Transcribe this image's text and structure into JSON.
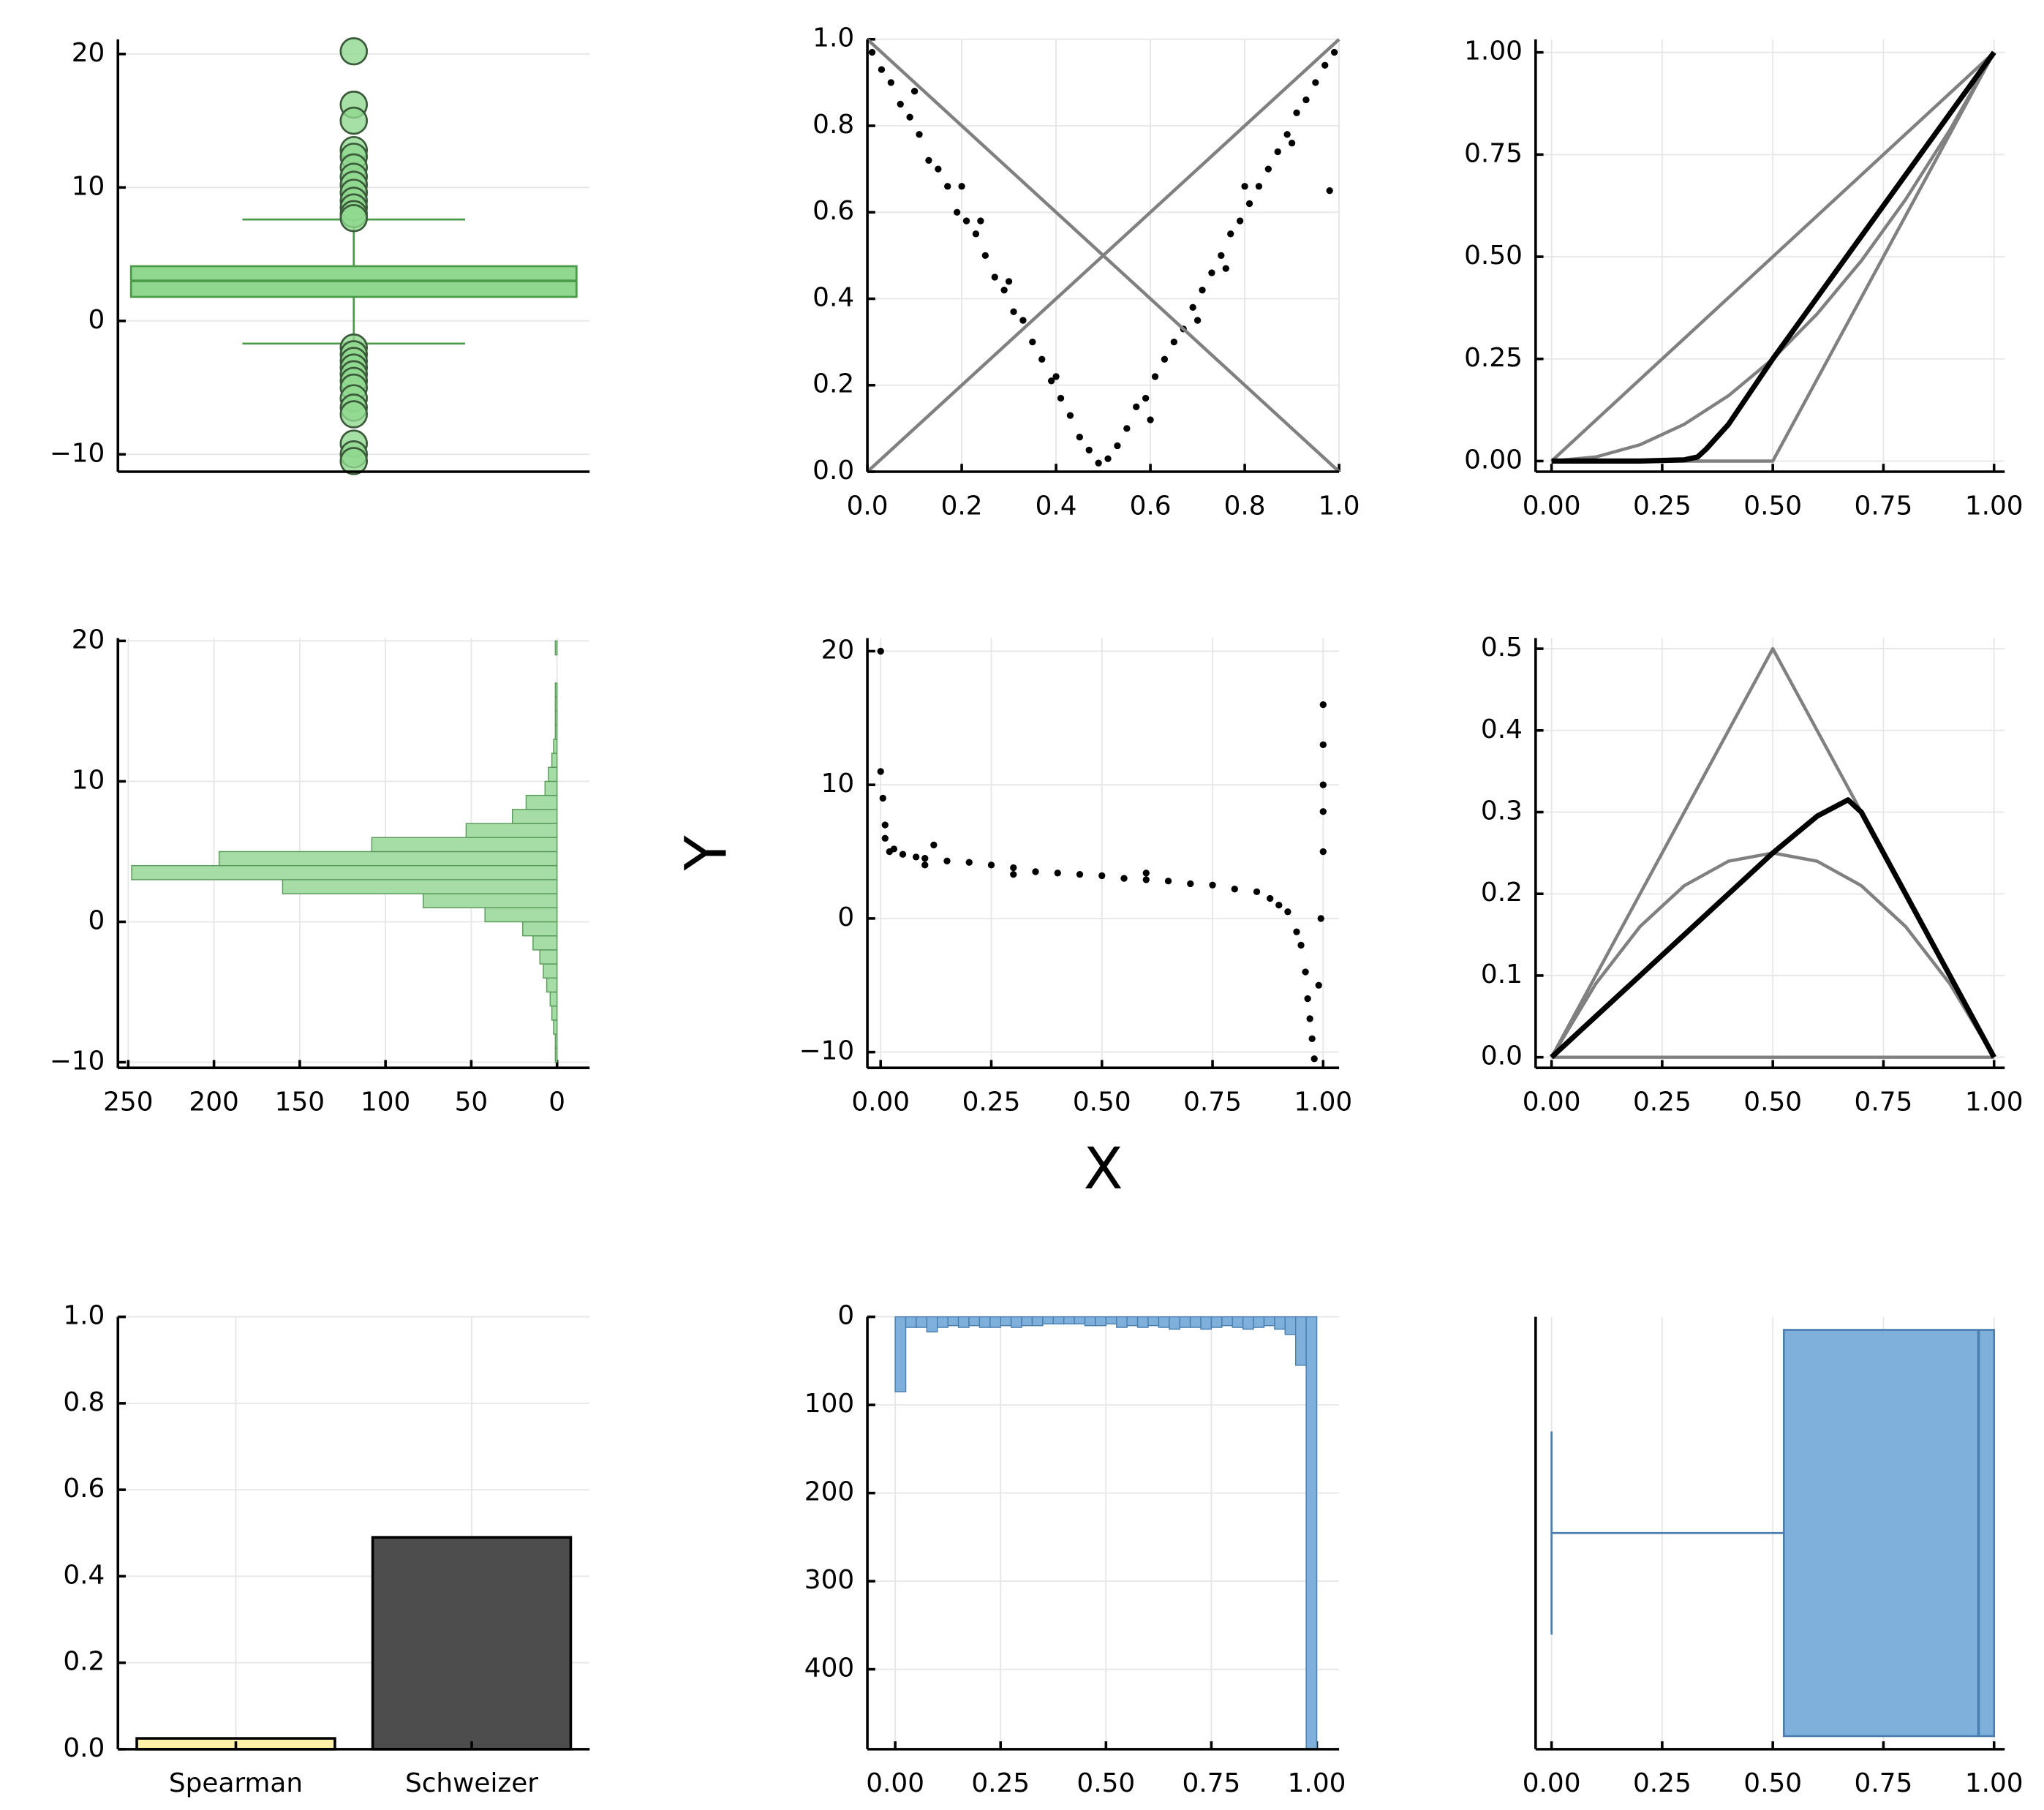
{
  "chart_data": [
    {
      "type": "box",
      "orientation": "vertical",
      "color": "#90d890",
      "edge": "#4a9a4a",
      "q1": 1.8,
      "median": 3.0,
      "q3": 4.1,
      "whisker_low": -1.7,
      "whisker_high": 7.6,
      "outliers": [
        20.2,
        16.2,
        15,
        12.8,
        12.3,
        11.5,
        10.8,
        10.2,
        9.6,
        9.0,
        8.5,
        8.0,
        7.7,
        -2,
        -2.5,
        -3,
        -3.5,
        -4,
        -4.5,
        -5,
        -5.8,
        -6.5,
        -7,
        -9.2,
        -10,
        -10.5
      ],
      "ylim": [
        -11.3,
        21.1
      ],
      "yticks": [
        {
          "value": -10,
          "label": "−10"
        },
        0,
        10,
        20
      ],
      "grid": true
    },
    {
      "type": "scatter",
      "xlim": [
        0,
        1
      ],
      "ylim": [
        0,
        1
      ],
      "xticks": [
        {
          "value": 0,
          "label": "0.0"
        },
        0.2,
        0.4,
        0.6,
        0.8,
        {
          "value": 1,
          "label": "1.0"
        }
      ],
      "yticks": [
        {
          "value": 0,
          "label": "0.0"
        },
        0.2,
        0.4,
        0.6,
        0.8,
        {
          "value": 1,
          "label": "1.0"
        }
      ],
      "grid": true,
      "series": [
        {
          "kind": "points",
          "color": "#000000",
          "x": [
            0.01,
            0.03,
            0.05,
            0.07,
            0.09,
            0.11,
            0.13,
            0.15,
            0.17,
            0.19,
            0.21,
            0.23,
            0.25,
            0.27,
            0.29,
            0.31,
            0.33,
            0.35,
            0.37,
            0.39,
            0.41,
            0.43,
            0.45,
            0.47,
            0.49,
            0.51,
            0.53,
            0.55,
            0.57,
            0.59,
            0.61,
            0.63,
            0.65,
            0.67,
            0.69,
            0.71,
            0.73,
            0.75,
            0.77,
            0.79,
            0.81,
            0.83,
            0.85,
            0.87,
            0.89,
            0.91,
            0.93,
            0.95,
            0.97,
            0.99,
            0.1,
            0.2,
            0.3,
            0.4,
            0.6,
            0.7,
            0.8,
            0.9,
            0.98,
            0.24,
            0.76
          ],
          "values": [
            0.97,
            0.93,
            0.9,
            0.85,
            0.82,
            0.78,
            0.72,
            0.7,
            0.66,
            0.6,
            0.58,
            0.55,
            0.5,
            0.45,
            0.42,
            0.37,
            0.35,
            0.3,
            0.26,
            0.21,
            0.17,
            0.13,
            0.08,
            0.05,
            0.02,
            0.03,
            0.06,
            0.1,
            0.15,
            0.17,
            0.22,
            0.26,
            0.3,
            0.33,
            0.38,
            0.42,
            0.46,
            0.5,
            0.55,
            0.58,
            0.62,
            0.66,
            0.7,
            0.74,
            0.78,
            0.83,
            0.86,
            0.9,
            0.94,
            0.97,
            0.88,
            0.66,
            0.44,
            0.22,
            0.12,
            0.35,
            0.66,
            0.76,
            0.65,
            0.58,
            0.47
          ]
        },
        {
          "kind": "line",
          "color": "#808080",
          "x": [
            0,
            1
          ],
          "values": [
            0,
            1
          ]
        },
        {
          "kind": "line",
          "color": "#808080",
          "x": [
            0,
            1
          ],
          "values": [
            1,
            0
          ]
        }
      ]
    },
    {
      "type": "line",
      "xlim": [
        -0.036,
        1.024
      ],
      "ylim": [
        -0.026,
        1.032
      ],
      "xticks": [
        {
          "value": 0,
          "label": "0.00"
        },
        0.25,
        {
          "value": 0.5,
          "label": "0.50"
        },
        0.75,
        {
          "value": 1,
          "label": "1.00"
        }
      ],
      "yticks": [
        {
          "value": 0,
          "label": "0.00"
        },
        0.25,
        {
          "value": 0.5,
          "label": "0.50"
        },
        0.75,
        {
          "value": 1,
          "label": "1.00"
        }
      ],
      "grid": true,
      "series": [
        {
          "kind": "line",
          "color": "#808080",
          "x": [
            0,
            1
          ],
          "values": [
            0,
            1
          ]
        },
        {
          "kind": "line",
          "color": "#808080",
          "x": [
            0,
            0.1,
            0.2,
            0.3,
            0.4,
            0.5,
            0.6,
            0.7,
            0.8,
            0.9,
            1
          ],
          "values": [
            0,
            0.01,
            0.04,
            0.09,
            0.16,
            0.25,
            0.36,
            0.49,
            0.64,
            0.81,
            1
          ]
        },
        {
          "kind": "line",
          "color": "#808080",
          "x": [
            0,
            0.5,
            1
          ],
          "values": [
            0,
            0,
            1
          ]
        },
        {
          "kind": "line",
          "color": "#000000",
          "x": [
            0,
            0.1,
            0.2,
            0.3,
            0.33,
            0.35,
            0.4,
            0.5,
            0.6,
            0.7,
            0.8,
            0.9,
            1
          ],
          "values": [
            0,
            0,
            0,
            0.003,
            0.01,
            0.03,
            0.09,
            0.25,
            0.4,
            0.55,
            0.7,
            0.85,
            1
          ]
        }
      ]
    },
    {
      "type": "histogram",
      "orientation": "horizontal",
      "color": "#a6dca6",
      "edge": "#5a9a5a",
      "bins": [
        -10,
        -9,
        -8,
        -7,
        -6,
        -5,
        -4,
        -3,
        -2,
        -1,
        0,
        1,
        2,
        3,
        4,
        5,
        6,
        7,
        8,
        9,
        10,
        11,
        12,
        13,
        14,
        15,
        16,
        17,
        18,
        19,
        20
      ],
      "values": [
        1,
        1,
        2,
        3,
        4,
        6,
        8,
        10,
        14,
        20,
        42,
        78,
        160,
        248,
        197,
        108,
        53,
        26,
        18,
        7,
        5,
        3,
        2,
        1,
        1,
        1,
        1,
        0,
        0,
        1
      ],
      "xlim": [
        256,
        -19
      ],
      "xticks": [
        250,
        200,
        150,
        100,
        50,
        0
      ],
      "ylim": [
        -10.4,
        20.2
      ],
      "yticks": [
        {
          "value": -10,
          "label": "−10"
        },
        0,
        10,
        20
      ],
      "grid": true
    },
    {
      "type": "scatter",
      "xlabel": "X",
      "ylabel": "Y",
      "xlim": [
        -0.03,
        1.036
      ],
      "ylim": [
        -11.18,
        20.98
      ],
      "xticks": [
        {
          "value": 0,
          "label": "0.00"
        },
        0.25,
        {
          "value": 0.5,
          "label": "0.50"
        },
        0.75,
        {
          "value": 1,
          "label": "1.00"
        }
      ],
      "yticks": [
        {
          "value": -10,
          "label": "−10"
        },
        0,
        10,
        20
      ],
      "grid": true,
      "series": [
        {
          "kind": "points",
          "color": "#000000",
          "x": [
            0,
            0,
            0.005,
            0.01,
            0.01,
            0.02,
            0.03,
            0.05,
            0.08,
            0.1,
            0.12,
            0.15,
            0.2,
            0.25,
            0.3,
            0.35,
            0.4,
            0.45,
            0.5,
            0.55,
            0.6,
            0.65,
            0.7,
            0.75,
            0.8,
            0.85,
            0.88,
            0.9,
            0.92,
            0.94,
            0.95,
            0.96,
            0.965,
            0.97,
            0.975,
            0.98,
            0.99,
            0.995,
            1,
            1,
            1,
            1,
            1,
            0.3,
            0.6,
            0.1
          ],
          "values": [
            20,
            11,
            9,
            7,
            6,
            5,
            5.2,
            4.8,
            4.6,
            4.5,
            5.5,
            4.3,
            4.2,
            4.0,
            3.8,
            3.5,
            3.4,
            3.3,
            3.2,
            3.0,
            2.9,
            2.8,
            2.6,
            2.5,
            2.2,
            2.0,
            1.5,
            1.0,
            0.5,
            -1,
            -2,
            -4,
            -6,
            -7.5,
            -9,
            -10.5,
            -5,
            0,
            5,
            8,
            10,
            13,
            16,
            3.3,
            3.4,
            4.0
          ]
        }
      ]
    },
    {
      "type": "line",
      "xlim": [
        -0.036,
        1.024
      ],
      "ylim": [
        -0.013,
        0.513
      ],
      "xticks": [
        {
          "value": 0,
          "label": "0.00"
        },
        0.25,
        {
          "value": 0.5,
          "label": "0.50"
        },
        0.75,
        {
          "value": 1,
          "label": "1.00"
        }
      ],
      "yticks": [
        {
          "value": 0,
          "label": "0.0"
        },
        0.1,
        0.2,
        0.3,
        0.4,
        0.5
      ],
      "grid": true,
      "series": [
        {
          "kind": "line",
          "color": "#808080",
          "x": [
            0,
            0.5,
            1
          ],
          "values": [
            0,
            0.5,
            0
          ]
        },
        {
          "kind": "line",
          "color": "#808080",
          "x": [
            0,
            0.1,
            0.2,
            0.3,
            0.4,
            0.5,
            0.6,
            0.7,
            0.8,
            0.9,
            1
          ],
          "values": [
            0,
            0.09,
            0.16,
            0.21,
            0.24,
            0.25,
            0.24,
            0.21,
            0.16,
            0.09,
            0
          ]
        },
        {
          "kind": "line",
          "color": "#808080",
          "x": [
            0,
            1
          ],
          "values": [
            0,
            0
          ]
        },
        {
          "kind": "line",
          "color": "#000000",
          "x": [
            0,
            0.1,
            0.2,
            0.3,
            0.4,
            0.5,
            0.6,
            0.67,
            0.7,
            0.8,
            0.9,
            1
          ],
          "values": [
            0,
            0.05,
            0.1,
            0.15,
            0.2,
            0.25,
            0.295,
            0.315,
            0.3,
            0.2,
            0.1,
            0
          ]
        }
      ]
    },
    {
      "type": "bar",
      "categories": [
        "Spearman",
        "Schweizer"
      ],
      "values": [
        0.025,
        0.49
      ],
      "colors": [
        "#fff2a8",
        "#4d4d4d"
      ],
      "ylim": [
        0,
        1
      ],
      "yticks": [
        {
          "value": 0,
          "label": "0.0"
        },
        0.2,
        0.4,
        0.6,
        0.8,
        {
          "value": 1,
          "label": "1.0"
        }
      ],
      "grid": true
    },
    {
      "type": "histogram",
      "orientation": "vertical",
      "color": "#7fb0dc",
      "edge": "#4a7fb0",
      "bins": [
        0,
        0.025,
        0.05,
        0.075,
        0.1,
        0.125,
        0.15,
        0.175,
        0.2,
        0.225,
        0.25,
        0.275,
        0.3,
        0.325,
        0.35,
        0.375,
        0.4,
        0.425,
        0.45,
        0.475,
        0.5,
        0.525,
        0.55,
        0.575,
        0.6,
        0.625,
        0.65,
        0.675,
        0.7,
        0.725,
        0.75,
        0.775,
        0.8,
        0.825,
        0.85,
        0.875,
        0.9,
        0.925,
        0.95,
        0.975,
        1
      ],
      "values": [
        85,
        12,
        12,
        17,
        12,
        10,
        12,
        10,
        12,
        12,
        10,
        12,
        10,
        10,
        8,
        8,
        8,
        8,
        10,
        10,
        8,
        12,
        10,
        12,
        10,
        12,
        14,
        12,
        12,
        14,
        12,
        10,
        12,
        14,
        12,
        10,
        14,
        20,
        55,
        490
      ],
      "xlim": [
        -0.066,
        1.053
      ],
      "xticks": [
        {
          "value": 0,
          "label": "0.00"
        },
        0.25,
        {
          "value": 0.5,
          "label": "0.50"
        },
        0.75,
        {
          "value": 1,
          "label": "1.00"
        }
      ],
      "ylim": [
        490.7,
        0
      ],
      "yticks": [
        0,
        100,
        200,
        300,
        400
      ],
      "grid": true
    },
    {
      "type": "box",
      "orientation": "horizontal",
      "color": "#7fb0dc",
      "edge": "#4a7fb0",
      "whisker_low": 0.0,
      "q1": 0.525,
      "median": 0.965,
      "q3": 1.0,
      "xlim": [
        -0.036,
        1.024
      ],
      "xticks": [
        {
          "value": 0,
          "label": "0.00"
        },
        0.25,
        {
          "value": 0.5,
          "label": "0.50"
        },
        0.75,
        {
          "value": 1,
          "label": "1.00"
        }
      ],
      "grid": true
    }
  ]
}
